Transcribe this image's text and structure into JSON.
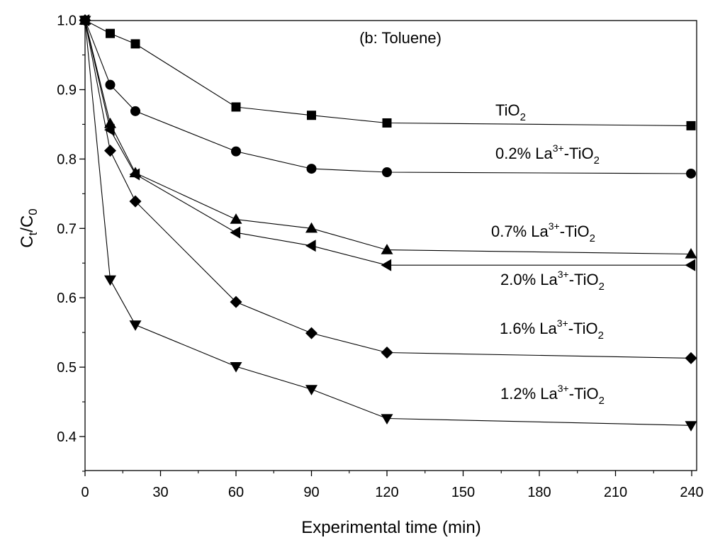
{
  "chart_data": {
    "type": "line",
    "annotation_title": "(b: Toluene)",
    "xlabel": "Experimental time (min)",
    "ylabel": {
      "main": "C",
      "sub1": "t",
      "mid": "/C",
      "sub2": "0"
    },
    "x_ticks": [
      "0",
      "30",
      "60",
      "90",
      "120",
      "150",
      "180",
      "210",
      "240"
    ],
    "y_ticks": [
      "0.4",
      "0.5",
      "0.6",
      "0.7",
      "0.8",
      "0.9",
      "1.0"
    ],
    "xlim": [
      0,
      240
    ],
    "ylim": [
      0.35,
      1.0
    ],
    "axis_breaks_x": [
      150,
      180,
      210
    ],
    "x_scale": "piecewise (linear 0–120, compressed 120–240)",
    "grid": false,
    "legend": "none (inline labels beside each series)",
    "series": [
      {
        "marker": "square",
        "x": [
          0,
          10,
          20,
          60,
          90,
          120,
          240
        ],
        "y": [
          1.0,
          0.981,
          0.966,
          0.875,
          0.863,
          0.852,
          0.848
        ],
        "label": {
          "pre": "TiO",
          "sub": "2"
        }
      },
      {
        "marker": "circle",
        "x": [
          0,
          10,
          20,
          60,
          90,
          120,
          240
        ],
        "y": [
          1.0,
          0.907,
          0.869,
          0.811,
          0.786,
          0.781,
          0.779
        ],
        "label": {
          "pre": "0.2% La",
          "sup": "3+",
          "mid": "-TiO",
          "sub": "2"
        }
      },
      {
        "marker": "triangle-up",
        "x": [
          0,
          10,
          20,
          60,
          90,
          120,
          240
        ],
        "y": [
          1.0,
          0.851,
          0.78,
          0.713,
          0.7,
          0.669,
          0.663
        ],
        "label": {
          "pre": "0.7% La",
          "sup": "3+",
          "mid": "-TiO",
          "sub": "2"
        }
      },
      {
        "marker": "triangle-left",
        "x": [
          0,
          10,
          20,
          60,
          90,
          120,
          240
        ],
        "y": [
          1.0,
          0.842,
          0.778,
          0.694,
          0.675,
          0.647,
          0.647
        ],
        "label": {
          "pre": "2.0% La",
          "sup": "3+",
          "mid": "-TiO",
          "sub": "2"
        }
      },
      {
        "marker": "diamond",
        "x": [
          0,
          10,
          20,
          60,
          90,
          120,
          240
        ],
        "y": [
          1.0,
          0.812,
          0.739,
          0.594,
          0.549,
          0.521,
          0.513
        ],
        "label": {
          "pre": "1.6% La",
          "sup": "3+",
          "mid": "-TiO",
          "sub": "2"
        }
      },
      {
        "marker": "triangle-down",
        "x": [
          0,
          10,
          20,
          60,
          90,
          120,
          240
        ],
        "y": [
          1.0,
          0.626,
          0.561,
          0.501,
          0.468,
          0.426,
          0.416
        ],
        "label": {
          "pre": "1.2% La",
          "sup": "3+",
          "mid": "-TiO",
          "sub": "2"
        }
      }
    ]
  }
}
